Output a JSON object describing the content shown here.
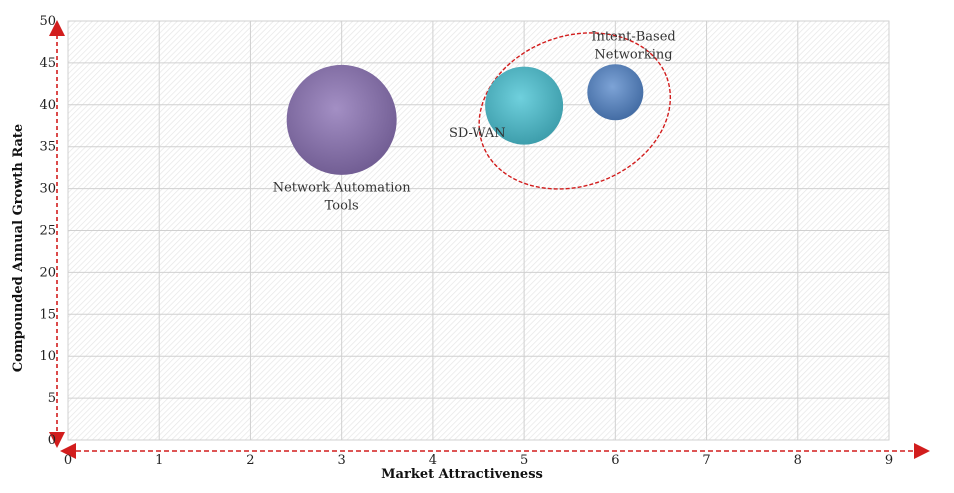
{
  "chart_data": {
    "type": "scatter",
    "title": "",
    "xlabel": "Market Attractiveness",
    "ylabel": "Compounded  Annual  Growth Rate",
    "xlim": [
      0,
      9
    ],
    "ylim": [
      0,
      50
    ],
    "x_ticks": [
      "0",
      "1",
      "2",
      "3",
      "4",
      "5",
      "6",
      "7",
      "8",
      "9"
    ],
    "y_ticks": [
      "0",
      "5",
      "10",
      "15",
      "20",
      "25",
      "30",
      "35",
      "40",
      "45",
      "50"
    ],
    "grid": true,
    "bubbles": [
      {
        "name": "Network Automation Tools",
        "label_lines": [
          "Network Automation",
          "Tools"
        ],
        "x": 3,
        "y": 38.2,
        "size": 55,
        "color": "#7f6aa0"
      },
      {
        "name": "SD-WAN",
        "label_lines": [
          "SD-WAN"
        ],
        "x": 5,
        "y": 39.9,
        "size": 39,
        "color": "#4bb0bf"
      },
      {
        "name": "Intent-Based Networking",
        "label_lines": [
          "Intent-Based",
          "Networking"
        ],
        "x": 6,
        "y": 41.5,
        "size": 28,
        "color": "#4f7cb8"
      }
    ],
    "highlight": {
      "type": "dashed-ellipse",
      "color": "#d21d1d",
      "encloses": [
        "SD-WAN",
        "Intent-Based Networking"
      ]
    },
    "axis_arrow_color": "#d21d1d"
  }
}
